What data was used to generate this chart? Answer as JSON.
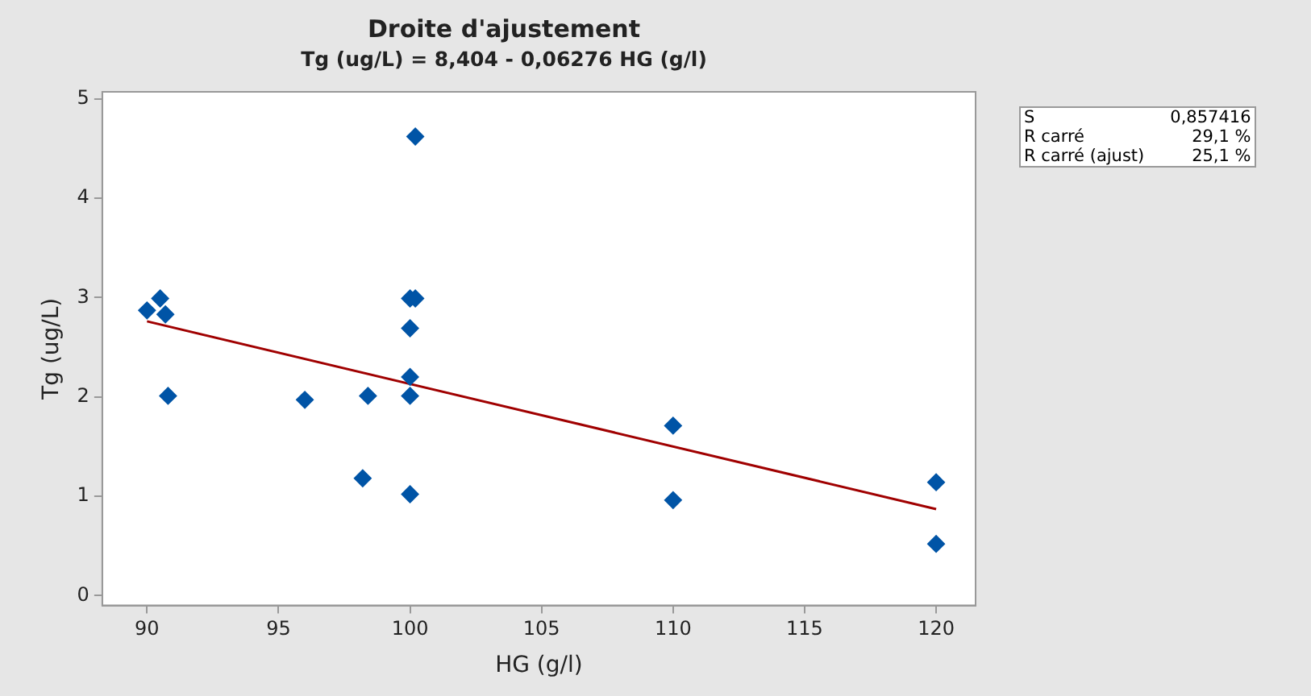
{
  "chart_data": {
    "type": "scatter",
    "title": "Droite d'ajustement",
    "subtitle": "Tg (ug/L) = 8,404 - 0,06276 HG (g/l)",
    "xlabel": "HG (g/l)",
    "ylabel": "Tg (ug/L)",
    "xlim": [
      88.3,
      121.5
    ],
    "xticks": [
      90,
      95,
      100,
      105,
      110,
      115,
      120
    ],
    "ylim": [
      -0.1,
      5.07
    ],
    "yticks": [
      0,
      1,
      2,
      3,
      4,
      5
    ],
    "grid": false,
    "legend": false,
    "series": [
      {
        "marker": "diamond",
        "color": "#0054a6",
        "x": [
          90,
          90.5,
          90.7,
          90.8,
          96,
          98.4,
          98.2,
          100,
          100,
          100,
          100,
          100,
          100.2,
          100.2,
          110,
          110,
          120,
          120
        ],
        "values": [
          2.87,
          2.99,
          2.83,
          2.01,
          1.97,
          2.01,
          1.18,
          1.02,
          2.01,
          2.2,
          2.69,
          2.99,
          2.99,
          4.62,
          1.71,
          0.96,
          1.14,
          0.52
        ]
      },
      {
        "type": "line",
        "marker": "none",
        "color": "#a00000",
        "x": [
          90,
          120
        ],
        "values": [
          2.76,
          0.87
        ]
      }
    ],
    "annotations": [
      "S\t0,857416",
      "R carré\t29,1 %",
      "R carré (ajust)\t25,1 %"
    ]
  }
}
